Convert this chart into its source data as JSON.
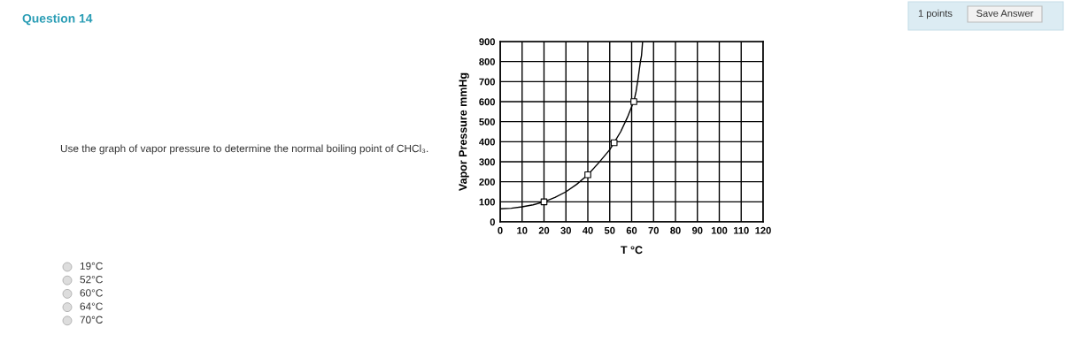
{
  "chart_data": {
    "type": "line",
    "title": "Question 14",
    "xlabel": "T °C",
    "ylabel": "Vapor Pressure mmHg",
    "xlim": [
      0,
      120
    ],
    "xticks": [
      0,
      10,
      20,
      30,
      40,
      50,
      60,
      70,
      80,
      90,
      100,
      110,
      120
    ],
    "ylim": [
      0,
      900
    ],
    "yticks": [
      0,
      100,
      200,
      300,
      400,
      500,
      600,
      700,
      800,
      900
    ],
    "grid": true,
    "legend": false,
    "series": [
      {
        "color": "#000000",
        "marker": "none",
        "x": [
          0,
          5,
          10,
          15,
          20,
          25,
          30,
          35,
          40,
          45,
          50,
          52,
          55,
          58,
          60,
          61,
          62,
          63,
          64,
          64.5,
          65
        ],
        "values": [
          65,
          68,
          75,
          85,
          100,
          122,
          150,
          188,
          235,
          295,
          360,
          395,
          450,
          520,
          575,
          600,
          650,
          720,
          800,
          830,
          900
        ]
      },
      {
        "type": "scatter",
        "color": "#000000",
        "marker": "square",
        "x": [
          20,
          40,
          52,
          61
        ],
        "values": [
          100,
          235,
          395,
          600
        ]
      }
    ],
    "annotations": [
      "Use the graph of vapor pressure to determine the normal boiling point of CHCl₃.",
      "19°C",
      "52°C",
      "60°C",
      "64°C",
      "70°C",
      "1 points",
      "Save Answer"
    ]
  }
}
